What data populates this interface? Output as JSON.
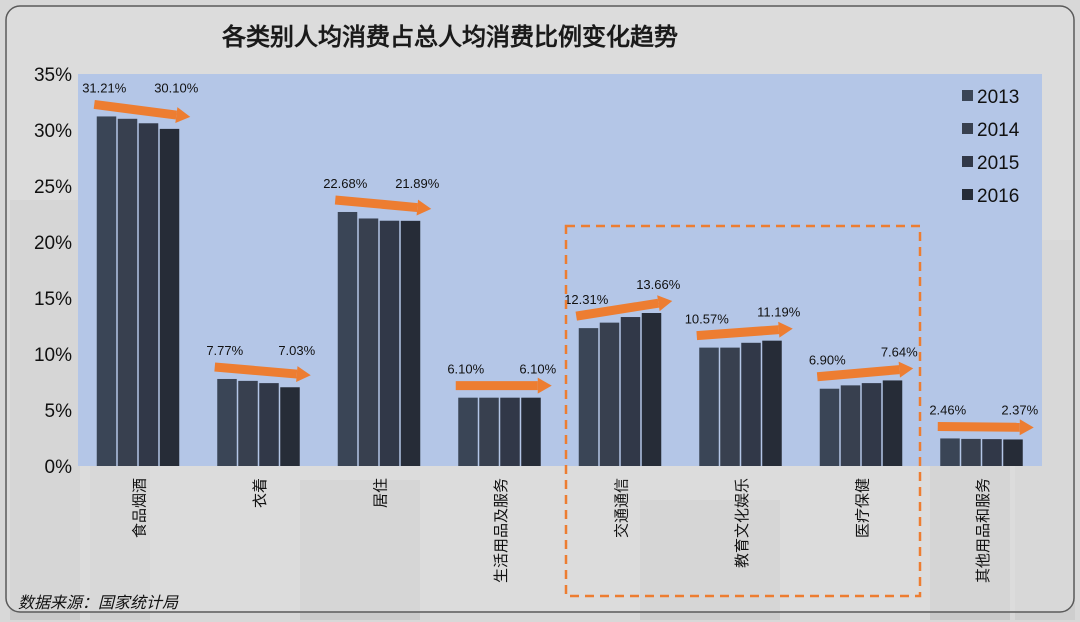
{
  "chart_data": {
    "type": "bar",
    "title": "各类别人均消费占总人均消费比例变化趋势",
    "categories": [
      "食品烟酒",
      "衣着",
      "居住",
      "生活用品及服务",
      "交通通信",
      "教育文化娱乐",
      "医疗保健",
      "其他用品和服务"
    ],
    "series": [
      {
        "name": "2013",
        "values": [
          31.21,
          7.77,
          22.68,
          6.1,
          12.31,
          10.57,
          6.9,
          2.46
        ]
      },
      {
        "name": "2014",
        "values": [
          31.0,
          7.6,
          22.1,
          6.1,
          12.8,
          10.57,
          7.2,
          2.42
        ]
      },
      {
        "name": "2015",
        "values": [
          30.6,
          7.4,
          21.9,
          6.1,
          13.3,
          11.0,
          7.4,
          2.4
        ]
      },
      {
        "name": "2016",
        "values": [
          30.1,
          7.03,
          21.89,
          6.1,
          13.66,
          11.19,
          7.64,
          2.37
        ]
      }
    ],
    "annotations": [
      {
        "category": "食品烟酒",
        "start": "31.21%",
        "end": "30.10%",
        "start_value": 31.21,
        "end_value": 30.1
      },
      {
        "category": "衣着",
        "start": "7.77%",
        "end": "7.03%",
        "start_value": 7.77,
        "end_value": 7.03
      },
      {
        "category": "居住",
        "start": "22.68%",
        "end": "21.89%",
        "start_value": 22.68,
        "end_value": 21.89
      },
      {
        "category": "生活用品及服务",
        "start": "6.10%",
        "end": "6.10%",
        "start_value": 6.1,
        "end_value": 6.1
      },
      {
        "category": "交通通信",
        "start": "12.31%",
        "end": "13.66%",
        "start_value": 12.31,
        "end_value": 13.66
      },
      {
        "category": "教育文化娱乐",
        "start": "10.57%",
        "end": "11.19%",
        "start_value": 10.57,
        "end_value": 11.19
      },
      {
        "category": "医疗保健",
        "start": "6.90%",
        "end": "7.64%",
        "start_value": 6.9,
        "end_value": 7.64
      },
      {
        "category": "其他用品和服务",
        "start": "2.46%",
        "end": "2.37%",
        "start_value": 2.46,
        "end_value": 2.37
      }
    ],
    "highlight_categories": [
      "交通通信",
      "教育文化娱乐",
      "医疗保健"
    ],
    "yticks": [
      "35%",
      "30%",
      "25%",
      "20%",
      "15%",
      "10%",
      "5%",
      "0%"
    ],
    "ylim": [
      0,
      35
    ],
    "legend_position": "top-right",
    "grid": false
  },
  "source": "数据来源：国家统计局",
  "colors": {
    "plot_bg": "#b4c6e7",
    "bar_colors": [
      "#3a4556",
      "#38404f",
      "#313848",
      "#262c37"
    ],
    "arrow": "#ed7d31",
    "highlight_box": "#ed7d31"
  }
}
